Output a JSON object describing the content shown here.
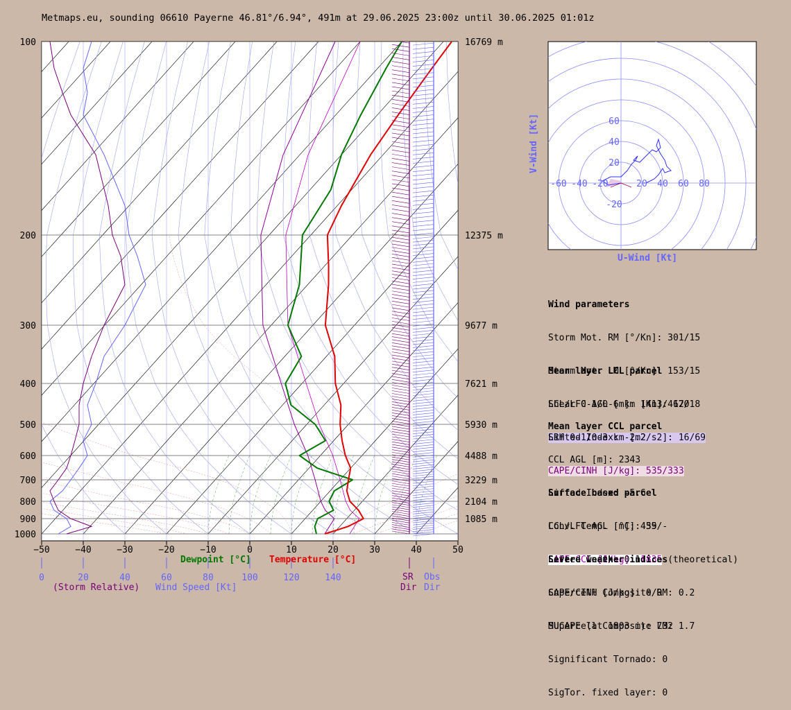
{
  "title": "Metmaps.eu, sounding 06610 Payerne 46.81°/6.94°, 491m at 29.06.2025 23:00z until 30.06.2025 01:01z",
  "colors": {
    "background": "#cbb8a8",
    "temperature": "#e00000",
    "dewpoint": "#007800",
    "wind": "#6464ff",
    "storm_relative": "#780078",
    "parcel": "#a000a0"
  },
  "axes": {
    "pressure_ticks": [
      "100",
      "200",
      "300",
      "400",
      "500",
      "600",
      "700",
      "800",
      "900",
      "1000"
    ],
    "height_labels": [
      "16769 m",
      "12375 m",
      "9677 m",
      "7621 m",
      "5930 m",
      "4488 m",
      "3229 m",
      "2104 m",
      "1085 m"
    ],
    "temp_ticks": [
      "−50",
      "−40",
      "−30",
      "−20",
      "−10",
      "0",
      "10",
      "20",
      "30",
      "40",
      "50"
    ],
    "wind_ticks": [
      "0",
      "20",
      "40",
      "60",
      "80",
      "100",
      "120",
      "140"
    ],
    "dewpoint_label": "Dewpoint [°C]",
    "temperature_label": "Temperature [°C]",
    "storm_relative_label": "(Storm Relative)",
    "wind_speed_label": "Wind Speed [Kt]",
    "sr_dir_label": [
      "SR",
      "Dir"
    ],
    "obs_dir_label": [
      "Obs",
      "Dir"
    ]
  },
  "hodograph": {
    "x_label": "U-Wind [Kt]",
    "y_label": "V-Wind [Kt]",
    "x_ticks": [
      "-60",
      "-40",
      "-20",
      "20",
      "40",
      "60",
      "80"
    ],
    "y_ticks": [
      "60",
      "40",
      "20",
      "-20"
    ]
  },
  "panels": {
    "wind": {
      "heading": "Wind parameters",
      "lines": [
        "Storm Mot. RM [°/Kn]: 301/15",
        "Storm Mot. LM [°/Kn]: 153/15",
        "Shear 0-1/0-6 km [Kn]: 17/18"
      ],
      "highlight": "SRH 0-1/0-3 km [m2/s2]: 16/69"
    },
    "lcl": {
      "heading": "Mean layer LCL parcel",
      "lines": [
        "LCL/LFC AGL [m]: 1413/4620",
        "Lifted Index: -2.2"
      ],
      "highlight": "CAPE/CINH [J/kg]: 535/333"
    },
    "ccl": {
      "heading": "Mean layer CCL parcel",
      "lines": [
        "CCL AGL [m]: 2343",
        "Lifted Index: -5.6",
        "Conv. Temp. [°C]: 35"
      ],
      "highlight": "CAPE CCL [J/kg]: 1835",
      "suffix": " (theoretical)"
    },
    "surface": {
      "heading": "Surface based parcel",
      "lines": [
        "LCL/LFC AGL [m]: 459/-",
        "Lifted Index: 0.1",
        "CAPE/CINH [J/kg]: 0/0",
        "MUCAPE (at 1803 m): 732"
      ]
    },
    "severe": {
      "heading": "Severe weather indices",
      "lines": [
        "Supercell Composite RM: 0.2",
        "Supercell Composite LM: 1.7",
        "Significant Tornado: 0",
        "SigTor. fixed layer: 0"
      ]
    }
  },
  "chart_data": {
    "type": "line",
    "x_unit": "°C",
    "y_unit": "hPa",
    "y_scale": "log",
    "xlim": [
      -50,
      50
    ],
    "ylim": [
      1000,
      100
    ],
    "series": [
      {
        "name": "Temperature",
        "points": [
          [
            1000,
            18
          ],
          [
            975,
            20
          ],
          [
            950,
            22
          ],
          [
            925,
            23
          ],
          [
            900,
            24
          ],
          [
            850,
            21
          ],
          [
            800,
            17
          ],
          [
            750,
            14
          ],
          [
            700,
            12
          ],
          [
            650,
            10
          ],
          [
            600,
            6
          ],
          [
            550,
            2
          ],
          [
            500,
            -2
          ],
          [
            450,
            -6
          ],
          [
            400,
            -12
          ],
          [
            350,
            -18
          ],
          [
            300,
            -27
          ],
          [
            250,
            -35
          ],
          [
            230,
            -39
          ],
          [
            200,
            -46
          ],
          [
            180,
            -49
          ],
          [
            150,
            -53
          ],
          [
            130,
            -55
          ],
          [
            110,
            -57
          ],
          [
            100,
            -58
          ]
        ]
      },
      {
        "name": "Dewpoint",
        "points": [
          [
            1000,
            16
          ],
          [
            950,
            14
          ],
          [
            900,
            13
          ],
          [
            850,
            15
          ],
          [
            800,
            12
          ],
          [
            750,
            11
          ],
          [
            700,
            13
          ],
          [
            650,
            2
          ],
          [
            600,
            -5
          ],
          [
            550,
            -2
          ],
          [
            500,
            -8
          ],
          [
            450,
            -18
          ],
          [
            400,
            -24
          ],
          [
            350,
            -26
          ],
          [
            300,
            -36
          ],
          [
            250,
            -42
          ],
          [
            200,
            -52
          ],
          [
            170,
            -55
          ],
          [
            150,
            -60
          ],
          [
            130,
            -64
          ],
          [
            110,
            -68
          ],
          [
            100,
            -70
          ]
        ]
      },
      {
        "name": "Parcel",
        "points": [
          [
            1000,
            18
          ],
          [
            900,
            17
          ],
          [
            850,
            13
          ],
          [
            800,
            10
          ],
          [
            700,
            4
          ],
          [
            600,
            -3
          ],
          [
            500,
            -13
          ],
          [
            400,
            -25
          ],
          [
            300,
            -42
          ],
          [
            250,
            -51
          ],
          [
            200,
            -62
          ],
          [
            150,
            -74
          ],
          [
            100,
            -86
          ]
        ]
      }
    ],
    "wind_speed": [
      {
        "name": "Wind Speed",
        "points": [
          [
            1000,
            8
          ],
          [
            950,
            14
          ],
          [
            900,
            12
          ],
          [
            850,
            6
          ],
          [
            800,
            4
          ],
          [
            750,
            10
          ],
          [
            700,
            14
          ],
          [
            650,
            18
          ],
          [
            600,
            22
          ],
          [
            550,
            20
          ],
          [
            500,
            24
          ],
          [
            450,
            22
          ],
          [
            400,
            26
          ],
          [
            350,
            30
          ],
          [
            300,
            40
          ],
          [
            250,
            50
          ],
          [
            220,
            46
          ],
          [
            200,
            42
          ],
          [
            180,
            40
          ],
          [
            150,
            30
          ],
          [
            130,
            20
          ],
          [
            120,
            22
          ],
          [
            110,
            20
          ],
          [
            100,
            24
          ]
        ]
      },
      {
        "name": "Storm Relative",
        "points": [
          [
            1000,
            12
          ],
          [
            950,
            24
          ],
          [
            900,
            14
          ],
          [
            850,
            8
          ],
          [
            800,
            6
          ],
          [
            750,
            4
          ],
          [
            700,
            8
          ],
          [
            650,
            12
          ],
          [
            600,
            14
          ],
          [
            550,
            16
          ],
          [
            500,
            18
          ],
          [
            450,
            18
          ],
          [
            400,
            20
          ],
          [
            350,
            24
          ],
          [
            300,
            30
          ],
          [
            250,
            40
          ],
          [
            220,
            38
          ],
          [
            200,
            34
          ],
          [
            180,
            32
          ],
          [
            150,
            26
          ],
          [
            130,
            14
          ],
          [
            120,
            10
          ],
          [
            110,
            6
          ],
          [
            100,
            4
          ]
        ]
      }
    ]
  }
}
